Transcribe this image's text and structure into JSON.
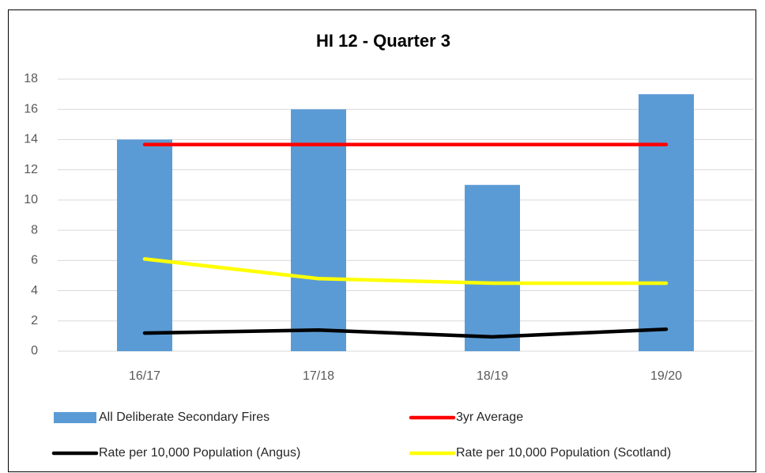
{
  "chart_data": {
    "type": "combo",
    "title": "HI 12 - Quarter 3",
    "categories": [
      "16/17",
      "17/18",
      "18/19",
      "19/20"
    ],
    "series": [
      {
        "name": "All Deliberate Secondary Fires",
        "type": "bar",
        "color": "#5b9bd5",
        "values": [
          14,
          16,
          11,
          17
        ]
      },
      {
        "name": "3yr Average",
        "type": "line",
        "color": "#ff0000",
        "values": [
          13.67,
          13.67,
          13.67,
          13.67
        ]
      },
      {
        "name": "Rate per 10,000 Population (Angus)",
        "type": "line",
        "color": "#000000",
        "values": [
          1.2,
          1.4,
          0.95,
          1.45
        ]
      },
      {
        "name": "Rate per 10,000 Population (Scotland)",
        "type": "line",
        "color": "#ffff00",
        "values": [
          6.1,
          4.8,
          4.5,
          4.5
        ]
      }
    ],
    "ylim": [
      0,
      18
    ],
    "yticks": [
      0,
      2,
      4,
      6,
      8,
      10,
      12,
      14,
      16,
      18
    ],
    "grid": true,
    "legend": "bottom"
  }
}
